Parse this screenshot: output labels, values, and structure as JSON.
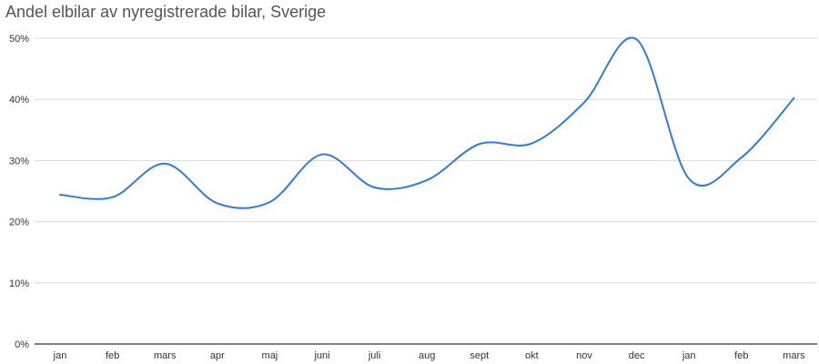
{
  "chart_data": {
    "type": "line",
    "title": "Andel elbilar av nyregistrerade bilar, Sverige",
    "xlabel": "",
    "ylabel": "",
    "categories": [
      "jan",
      "feb",
      "mars",
      "apr",
      "maj",
      "juni",
      "juli",
      "aug",
      "sept",
      "okt",
      "nov",
      "dec",
      "jan",
      "feb",
      "mars"
    ],
    "series": [
      {
        "values": [
          24.4,
          24.0,
          29.5,
          23.0,
          23.2,
          31.0,
          25.6,
          26.8,
          32.7,
          32.8,
          39.5,
          49.8,
          27.0,
          30.5,
          40.2
        ]
      }
    ],
    "y_ticks": [
      0,
      10,
      20,
      30,
      40,
      50
    ],
    "y_tick_format": "%",
    "ylim": [
      0,
      50
    ],
    "grid": true,
    "legend": "none",
    "colors": {
      "line": "#2f7ae5",
      "grid": "#d9d9d9",
      "axis": "#333333"
    }
  }
}
